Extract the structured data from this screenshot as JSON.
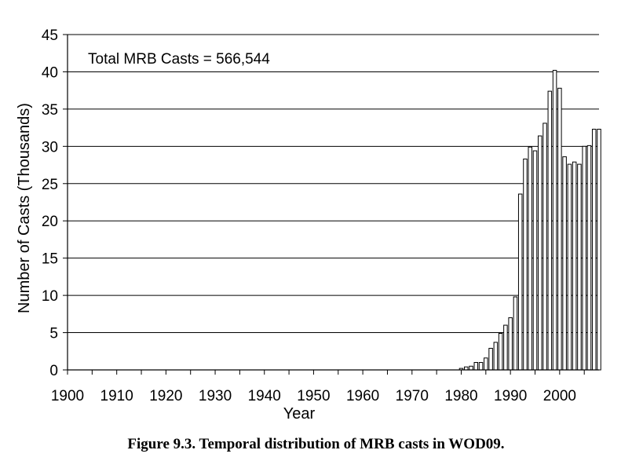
{
  "caption": "Figure 9.3. Temporal distribution of MRB casts in WOD09.",
  "chart_data": {
    "type": "bar",
    "title": "",
    "xlabel": "Year",
    "ylabel": "Number of Casts (Thousands)",
    "annotation": "Total MRB Casts = 566,544",
    "xlim": [
      1900,
      2008
    ],
    "ylim": [
      0,
      45
    ],
    "x_ticks": [
      "1900",
      "1910",
      "1920",
      "1930",
      "1940",
      "1950",
      "1960",
      "1970",
      "1980",
      "1990",
      "2000"
    ],
    "y_ticks": [
      "0",
      "5",
      "10",
      "15",
      "20",
      "25",
      "30",
      "35",
      "40",
      "45"
    ],
    "grid": "horizontal",
    "bar_fill": "#ffffff",
    "bar_stroke": "#000000",
    "categories": [
      1980,
      1981,
      1982,
      1983,
      1984,
      1985,
      1986,
      1987,
      1988,
      1989,
      1990,
      1991,
      1992,
      1993,
      1994,
      1995,
      1996,
      1997,
      1998,
      1999,
      2000,
      2001,
      2002,
      2003,
      2004,
      2005,
      2006,
      2007,
      2008
    ],
    "values": [
      0.2,
      0.4,
      0.5,
      1.0,
      1.0,
      1.6,
      2.9,
      3.7,
      4.9,
      6.0,
      7.0,
      9.8,
      23.6,
      28.3,
      29.9,
      29.4,
      31.4,
      33.1,
      37.4,
      40.2,
      37.8,
      28.6,
      27.6,
      27.9,
      27.6,
      30.0,
      30.1,
      32.3,
      32.3
    ]
  }
}
